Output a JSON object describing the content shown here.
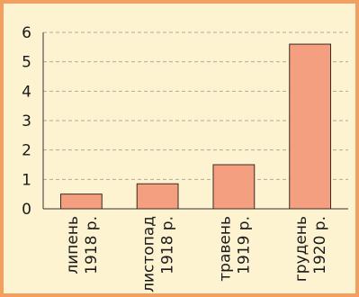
{
  "chart_data": {
    "type": "bar",
    "categories": [
      [
        "липень",
        "1918 р."
      ],
      [
        "листопад",
        "1918 р."
      ],
      [
        "травень",
        "1919 р."
      ],
      [
        "грудень",
        "1920 р."
      ]
    ],
    "values": [
      0.5,
      0.85,
      1.5,
      5.6
    ],
    "title": "",
    "xlabel": "",
    "ylabel": "",
    "ylim": [
      0,
      6
    ],
    "yticks": [
      "0",
      "1",
      "2",
      "3",
      "4",
      "5",
      "6"
    ],
    "grid": true,
    "legend": "none",
    "colors": {
      "bar_fill": "#f4a080",
      "bar_stroke": "#3a2a20",
      "frame_border": "#f0a060",
      "background": "#fdf3d1",
      "grid": "#b0aaa0"
    }
  }
}
